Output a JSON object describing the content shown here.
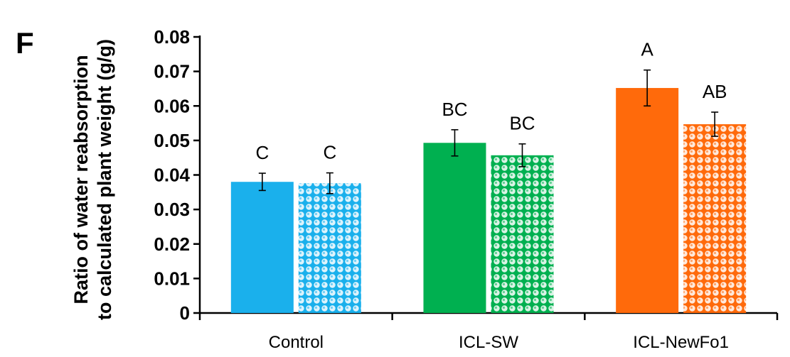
{
  "panel_label": "F",
  "chart_data": {
    "type": "bar",
    "ylabel_lines": [
      "Ratio of water reabsorption",
      "to calculated plant weight (g/g)"
    ],
    "xlabel": "",
    "ylim": [
      0,
      0.08
    ],
    "yticks": [
      "0",
      "0.01",
      "0.02",
      "0.03",
      "0.04",
      "0.05",
      "0.06",
      "0.07",
      "0.08"
    ],
    "categories": [
      "Control",
      "ICL-SW",
      "ICL-NewFo1"
    ],
    "grid": false,
    "legend": "none",
    "series": [
      {
        "style": "solid",
        "values": [
          0.038,
          0.0493,
          0.0652
        ],
        "errors": [
          0.0025,
          0.0038,
          0.0052
        ],
        "labels": [
          "C",
          "BC",
          "A"
        ]
      },
      {
        "style": "patterned",
        "values": [
          0.0376,
          0.0457,
          0.0547
        ],
        "errors": [
          0.003,
          0.0033,
          0.0035
        ],
        "labels": [
          "C",
          "BC",
          "AB"
        ]
      }
    ],
    "colors": [
      "#1ab0ec",
      "#00b050",
      "#ff6a0b"
    ]
  }
}
